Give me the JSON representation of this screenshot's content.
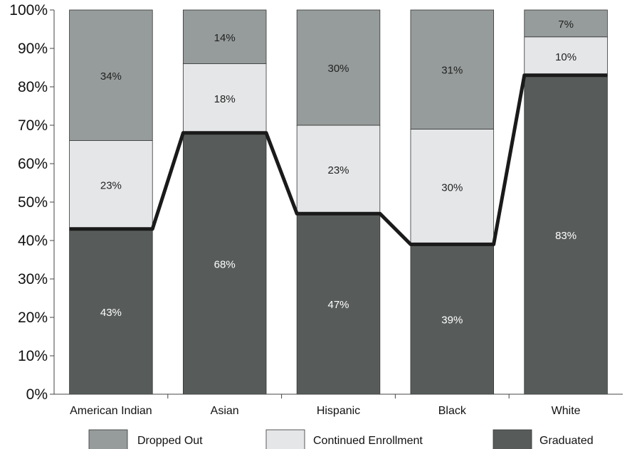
{
  "chart_data": {
    "type": "bar",
    "stacked": true,
    "categories": [
      "American Indian",
      "Asian",
      "Hispanic",
      "Black",
      "White"
    ],
    "series": [
      {
        "name": "Graduated",
        "values": [
          43,
          68,
          47,
          39,
          83
        ],
        "color": "#575c5a",
        "label_color": "#ffffff"
      },
      {
        "name": "Continued Enrollment",
        "values": [
          23,
          18,
          23,
          30,
          10
        ],
        "color": "#e5e6e8",
        "label_color": "#222222"
      },
      {
        "name": "Dropped Out",
        "values": [
          34,
          14,
          30,
          31,
          7
        ],
        "color": "#969c9b",
        "label_color": "#222222"
      }
    ],
    "value_labels": [
      [
        "43%",
        "68%",
        "47%",
        "39%",
        "83%"
      ],
      [
        "23%",
        "18%",
        "23%",
        "30%",
        "10%"
      ],
      [
        "34%",
        "14%",
        "30%",
        "31%",
        "7%"
      ]
    ],
    "connector_line": {
      "series": "Graduated",
      "color": "#1a1a1a"
    },
    "y_ticks": [
      "0%",
      "10%",
      "20%",
      "30%",
      "40%",
      "50%",
      "60%",
      "70%",
      "80%",
      "90%",
      "100%"
    ],
    "ylim": [
      0,
      100
    ],
    "grid": false,
    "legend": {
      "placement": "bottom",
      "order": [
        "Dropped Out",
        "Continued Enrollment",
        "Graduated"
      ]
    }
  }
}
